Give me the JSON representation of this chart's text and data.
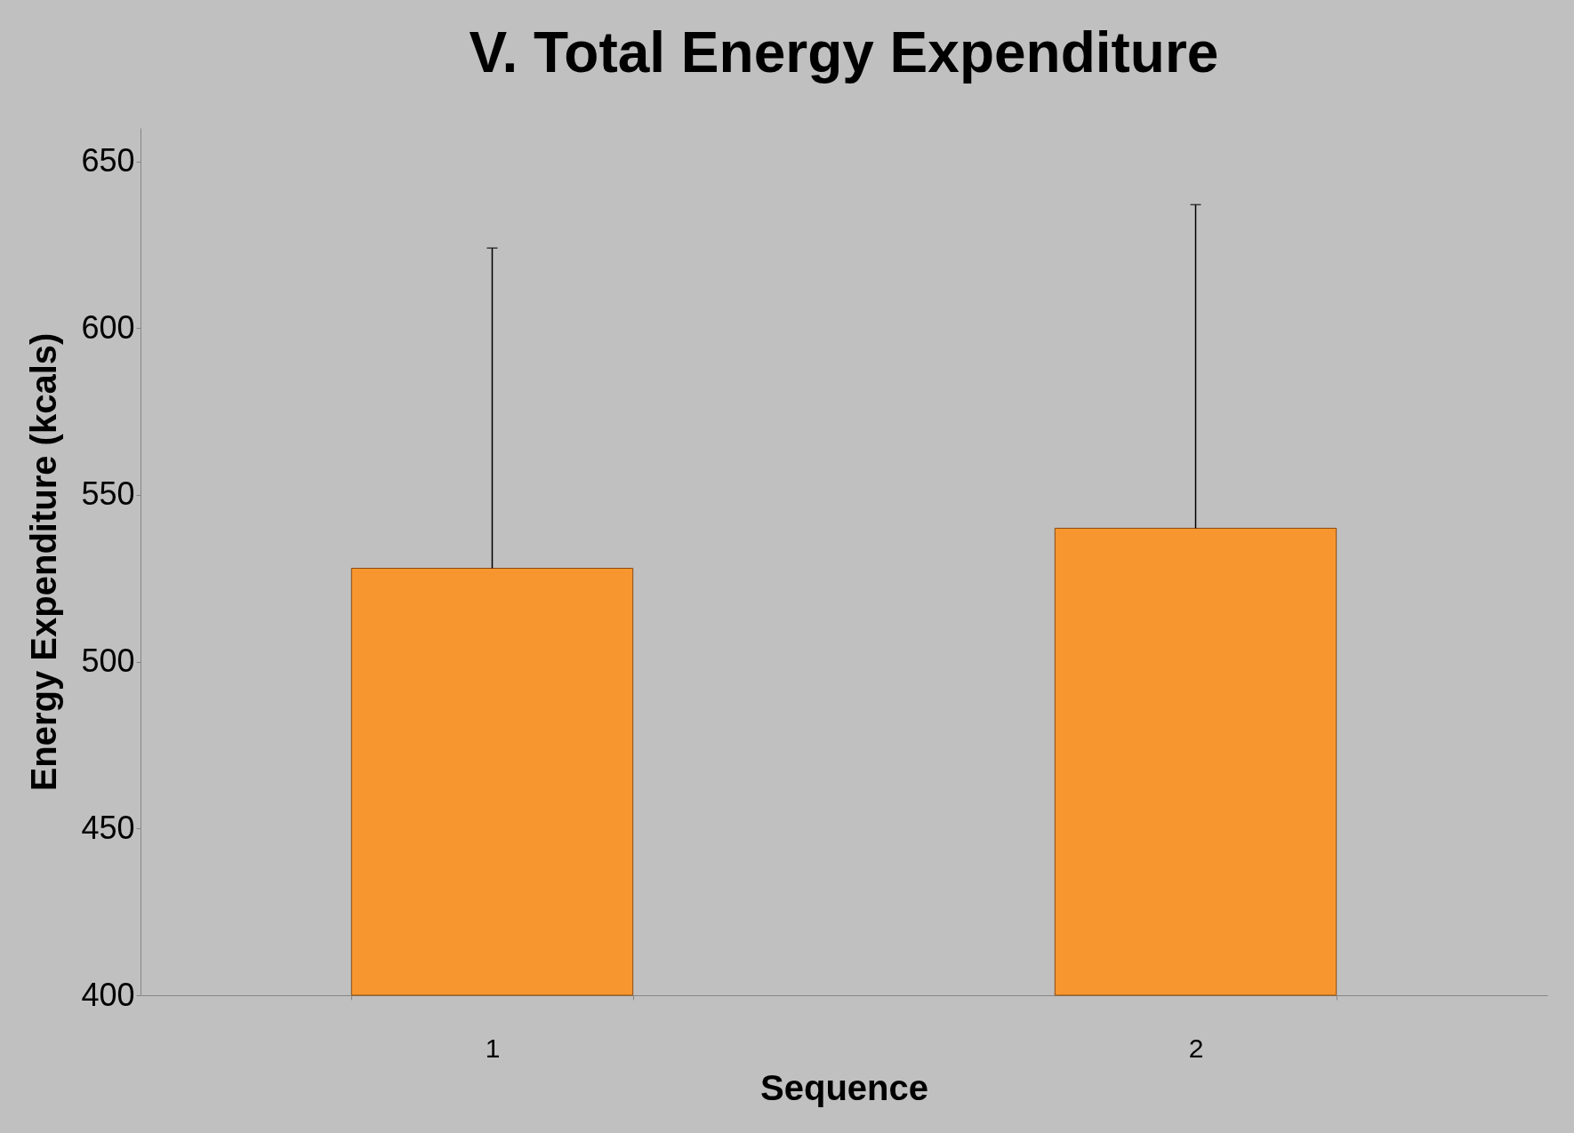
{
  "chart_data": {
    "type": "bar",
    "title": "V. Total Energy Expenditure",
    "xlabel": "Sequence",
    "ylabel": "Energy Expenditure (kcals)",
    "categories": [
      "1",
      "2"
    ],
    "values": [
      528,
      540
    ],
    "color": "#f7962e",
    "errors": [
      [
        528,
        624
      ],
      [
        540,
        637
      ]
    ],
    "ylim": [
      400,
      660
    ],
    "yticks": [
      400,
      450,
      500,
      550,
      600,
      650
    ],
    "grid": false
  }
}
